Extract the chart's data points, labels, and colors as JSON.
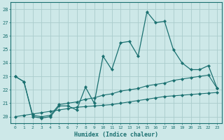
{
  "xlabel": "Humidex (Indice chaleur)",
  "bg_color": "#cde8e8",
  "grid_color": "#aacccc",
  "line_color": "#1a7070",
  "xlim": [
    -0.5,
    23.5
  ],
  "ylim": [
    19.5,
    28.5
  ],
  "xticks": [
    0,
    1,
    2,
    3,
    4,
    5,
    6,
    7,
    8,
    9,
    10,
    11,
    12,
    13,
    14,
    15,
    16,
    17,
    18,
    19,
    20,
    21,
    22,
    23
  ],
  "yticks": [
    20,
    21,
    22,
    23,
    24,
    25,
    26,
    27,
    28
  ],
  "line1_x": [
    0,
    1,
    2,
    3,
    4,
    5,
    6,
    7,
    8,
    9,
    10,
    11,
    12,
    13,
    14,
    15,
    16,
    17,
    18,
    19,
    20,
    21,
    22,
    23
  ],
  "line1_y": [
    23.0,
    22.6,
    20.0,
    19.9,
    20.0,
    20.8,
    20.8,
    20.5,
    22.2,
    21.0,
    24.5,
    23.5,
    25.5,
    25.6,
    24.5,
    27.8,
    27.0,
    27.1,
    25.0,
    24.0,
    23.5,
    23.5,
    23.8,
    22.1
  ],
  "line2_x": [
    0,
    1,
    2,
    3,
    4,
    5,
    6,
    7,
    8,
    9,
    10,
    11,
    12,
    13,
    14,
    15,
    16,
    17,
    18,
    19,
    20,
    21,
    22,
    23
  ],
  "line2_y": [
    23.0,
    22.6,
    20.1,
    20.0,
    20.1,
    20.9,
    21.0,
    21.1,
    21.3,
    21.4,
    21.6,
    21.7,
    21.9,
    22.0,
    22.1,
    22.3,
    22.4,
    22.5,
    22.7,
    22.8,
    22.9,
    23.0,
    23.1,
    22.1
  ],
  "line3_x": [
    0,
    1,
    2,
    3,
    4,
    5,
    6,
    7,
    8,
    9,
    10,
    11,
    12,
    13,
    14,
    15,
    16,
    17,
    18,
    19,
    20,
    21,
    22,
    23
  ],
  "line3_y": [
    20.0,
    20.1,
    20.2,
    20.3,
    20.4,
    20.5,
    20.6,
    20.7,
    20.75,
    20.8,
    20.85,
    20.9,
    21.0,
    21.1,
    21.2,
    21.3,
    21.4,
    21.5,
    21.55,
    21.6,
    21.65,
    21.7,
    21.75,
    21.8
  ]
}
